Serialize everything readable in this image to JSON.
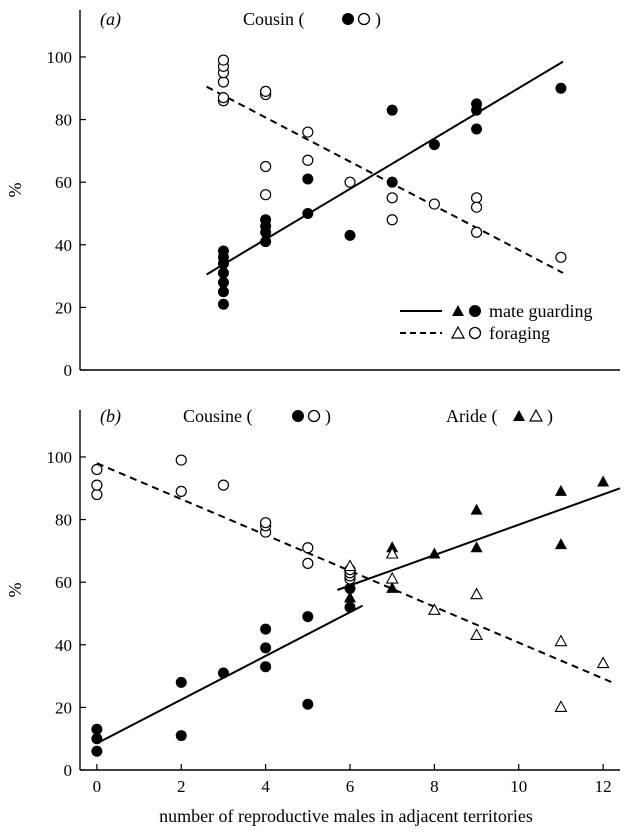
{
  "figure": {
    "xlabel": "number of reproductive males in adjacent territories",
    "ylabel": "%",
    "legend": [
      {
        "label": "mate guarding",
        "line_style": "solid",
        "markers": [
          "filled-triangle",
          "filled-circle"
        ]
      },
      {
        "label": "foraging",
        "line_style": "dashed",
        "markers": [
          "open-triangle",
          "open-circle"
        ]
      }
    ]
  },
  "chart_data": [
    {
      "type": "scatter",
      "panel_label": "(a)",
      "title": "Cousin (",
      "title_close": ")",
      "xlim": [
        -0.4,
        12.4
      ],
      "ylim": [
        0,
        115
      ],
      "x_ticks": [],
      "y_ticks": [
        0,
        20,
        40,
        60,
        80,
        100
      ],
      "series": [
        {
          "name": "mate guarding",
          "marker": "filled-circle",
          "points": [
            [
              3,
              21
            ],
            [
              3,
              25
            ],
            [
              3,
              28
            ],
            [
              3,
              31
            ],
            [
              3,
              34
            ],
            [
              3,
              36
            ],
            [
              3,
              38
            ],
            [
              4,
              41
            ],
            [
              4,
              44
            ],
            [
              4,
              46
            ],
            [
              4,
              48
            ],
            [
              5,
              50
            ],
            [
              5,
              61
            ],
            [
              6,
              43
            ],
            [
              7,
              60
            ],
            [
              7,
              83
            ],
            [
              8,
              72
            ],
            [
              9,
              77
            ],
            [
              9,
              83
            ],
            [
              9,
              85
            ],
            [
              11,
              90
            ]
          ]
        },
        {
          "name": "foraging",
          "marker": "open-circle",
          "points": [
            [
              3,
              86
            ],
            [
              3,
              87
            ],
            [
              3,
              92
            ],
            [
              3,
              95
            ],
            [
              3,
              97
            ],
            [
              3,
              99
            ],
            [
              4,
              88
            ],
            [
              4,
              89
            ],
            [
              4,
              65
            ],
            [
              4,
              56
            ],
            [
              5,
              76
            ],
            [
              5,
              67
            ],
            [
              6,
              60
            ],
            [
              7,
              55
            ],
            [
              7,
              48
            ],
            [
              8,
              53
            ],
            [
              9,
              55
            ],
            [
              9,
              52
            ],
            [
              9,
              44
            ],
            [
              11,
              36
            ]
          ]
        }
      ],
      "fit_lines": [
        {
          "series": "mate guarding",
          "style": "solid",
          "x": [
            2.6,
            11.05
          ],
          "y": [
            30.5,
            98.5
          ]
        },
        {
          "series": "foraging",
          "style": "dashed",
          "x": [
            2.6,
            11.05
          ],
          "y": [
            90.5,
            31
          ]
        }
      ]
    },
    {
      "type": "scatter",
      "panel_label": "(b)",
      "title": "Cousine (",
      "title_close": ")",
      "title2": "Aride (",
      "title2_close": ")",
      "xlim": [
        -0.4,
        12.4
      ],
      "ylim": [
        0,
        115
      ],
      "x_ticks": [
        0,
        2,
        4,
        6,
        8,
        10,
        12
      ],
      "y_ticks": [
        0,
        20,
        40,
        60,
        80,
        100
      ],
      "series": [
        {
          "name": "Cousine mate guarding",
          "marker": "filled-circle",
          "points": [
            [
              0,
              6
            ],
            [
              0,
              10
            ],
            [
              0,
              13
            ],
            [
              2,
              11
            ],
            [
              2,
              28
            ],
            [
              3,
              31
            ],
            [
              4,
              33
            ],
            [
              4,
              39
            ],
            [
              4,
              45
            ],
            [
              5,
              21
            ],
            [
              5,
              49
            ],
            [
              6,
              52
            ],
            [
              6,
              58
            ]
          ]
        },
        {
          "name": "Cousine foraging",
          "marker": "open-circle",
          "points": [
            [
              0,
              88
            ],
            [
              0,
              91
            ],
            [
              0,
              96
            ],
            [
              2,
              89
            ],
            [
              2,
              99
            ],
            [
              3,
              91
            ],
            [
              4,
              76
            ],
            [
              4,
              78
            ],
            [
              4,
              79
            ],
            [
              5,
              66
            ],
            [
              5,
              71
            ],
            [
              6,
              61
            ],
            [
              6,
              62
            ],
            [
              6,
              63
            ],
            [
              6,
              64
            ]
          ]
        },
        {
          "name": "Aride mate guarding",
          "marker": "filled-triangle",
          "points": [
            [
              6,
              55
            ],
            [
              7,
              58
            ],
            [
              7,
              71
            ],
            [
              8,
              69
            ],
            [
              9,
              71
            ],
            [
              9,
              83
            ],
            [
              11,
              72
            ],
            [
              11,
              89
            ],
            [
              12,
              92
            ]
          ]
        },
        {
          "name": "Aride foraging",
          "marker": "open-triangle",
          "points": [
            [
              6,
              65
            ],
            [
              7,
              69
            ],
            [
              7,
              61
            ],
            [
              8,
              51
            ],
            [
              9,
              56
            ],
            [
              9,
              43
            ],
            [
              11,
              41
            ],
            [
              11,
              20
            ],
            [
              12,
              34
            ]
          ]
        }
      ],
      "fit_lines": [
        {
          "series": "Cousine mate guarding",
          "style": "solid",
          "x": [
            0,
            6.3
          ],
          "y": [
            8.5,
            52.5
          ]
        },
        {
          "series": "foraging",
          "style": "dashed",
          "x": [
            0,
            12.3
          ],
          "y": [
            98,
            27.5
          ]
        },
        {
          "series": "Aride mate guarding",
          "style": "solid",
          "x": [
            5.7,
            12.4
          ],
          "y": [
            57.5,
            90
          ]
        }
      ]
    }
  ]
}
